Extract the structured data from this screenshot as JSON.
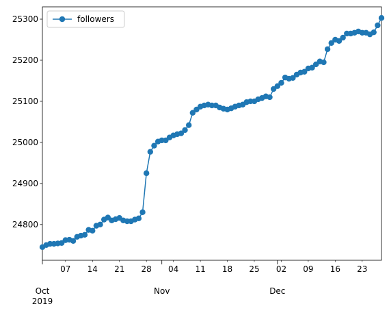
{
  "chart_data": {
    "type": "line",
    "x": [
      "2019-10-01",
      "2019-10-02",
      "2019-10-03",
      "2019-10-04",
      "2019-10-05",
      "2019-10-06",
      "2019-10-07",
      "2019-10-08",
      "2019-10-09",
      "2019-10-10",
      "2019-10-11",
      "2019-10-12",
      "2019-10-13",
      "2019-10-14",
      "2019-10-15",
      "2019-10-16",
      "2019-10-17",
      "2019-10-18",
      "2019-10-19",
      "2019-10-20",
      "2019-10-21",
      "2019-10-22",
      "2019-10-23",
      "2019-10-24",
      "2019-10-25",
      "2019-10-26",
      "2019-10-27",
      "2019-10-28",
      "2019-10-29",
      "2019-10-30",
      "2019-10-31",
      "2019-11-01",
      "2019-11-02",
      "2019-11-03",
      "2019-11-04",
      "2019-11-05",
      "2019-11-06",
      "2019-11-07",
      "2019-11-08",
      "2019-11-09",
      "2019-11-10",
      "2019-11-11",
      "2019-11-12",
      "2019-11-13",
      "2019-11-14",
      "2019-11-15",
      "2019-11-16",
      "2019-11-17",
      "2019-11-18",
      "2019-11-19",
      "2019-11-20",
      "2019-11-21",
      "2019-11-22",
      "2019-11-23",
      "2019-11-24",
      "2019-11-25",
      "2019-11-26",
      "2019-11-27",
      "2019-11-28",
      "2019-11-29",
      "2019-11-30",
      "2019-12-01",
      "2019-12-02",
      "2019-12-03",
      "2019-12-04",
      "2019-12-05",
      "2019-12-06",
      "2019-12-07",
      "2019-12-08",
      "2019-12-09",
      "2019-12-10",
      "2019-12-11",
      "2019-12-12",
      "2019-12-13",
      "2019-12-14",
      "2019-12-15",
      "2019-12-16",
      "2019-12-17",
      "2019-12-18",
      "2019-12-19",
      "2019-12-20",
      "2019-12-21",
      "2019-12-22",
      "2019-12-23",
      "2019-12-24",
      "2019-12-25",
      "2019-12-26",
      "2019-12-27",
      "2019-12-28"
    ],
    "series": [
      {
        "name": "followers",
        "color": "#1f77b4",
        "values": [
          24745,
          24750,
          24753,
          24753,
          24754,
          24755,
          24762,
          24763,
          24760,
          24770,
          24773,
          24775,
          24787,
          24785,
          24797,
          24800,
          24812,
          24817,
          24810,
          24813,
          24816,
          24810,
          24808,
          24808,
          24812,
          24815,
          24830,
          24925,
          24977,
          24992,
          25002,
          25005,
          25005,
          25012,
          25017,
          25020,
          25022,
          25030,
          25042,
          25072,
          25080,
          25087,
          25090,
          25092,
          25090,
          25090,
          25085,
          25082,
          25080,
          25083,
          25087,
          25090,
          25092,
          25098,
          25100,
          25100,
          25105,
          25108,
          25112,
          25110,
          25130,
          25137,
          25145,
          25158,
          25155,
          25157,
          25165,
          25170,
          25172,
          25180,
          25182,
          25190,
          25197,
          25195,
          25227,
          25242,
          25250,
          25247,
          25255,
          25265,
          25265,
          25267,
          25270,
          25267,
          25267,
          25263,
          25268,
          25285,
          25303
        ]
      }
    ],
    "xlim": [
      "2019-10-01",
      "2019-12-28"
    ],
    "xticks": [
      {
        "value": "2019-10-01",
        "label": "Oct\n2019"
      },
      {
        "value": "2019-11-01",
        "label": "Nov"
      },
      {
        "value": "2019-12-01",
        "label": "Dec"
      }
    ],
    "xminorticks": [
      {
        "value": "2019-10-07",
        "label": "07"
      },
      {
        "value": "2019-10-14",
        "label": "14"
      },
      {
        "value": "2019-10-21",
        "label": "21"
      },
      {
        "value": "2019-10-28",
        "label": "28"
      },
      {
        "value": "2019-11-04",
        "label": "04"
      },
      {
        "value": "2019-11-11",
        "label": "11"
      },
      {
        "value": "2019-11-18",
        "label": "18"
      },
      {
        "value": "2019-11-25",
        "label": "25"
      },
      {
        "value": "2019-12-02",
        "label": "02"
      },
      {
        "value": "2019-12-09",
        "label": "09"
      },
      {
        "value": "2019-12-16",
        "label": "16"
      },
      {
        "value": "2019-12-23",
        "label": "23"
      }
    ],
    "ylim": [
      24713,
      25330
    ],
    "yticks": [
      24800,
      24900,
      25000,
      25100,
      25200,
      25300
    ],
    "legend": "upper left",
    "marker": "circle"
  }
}
